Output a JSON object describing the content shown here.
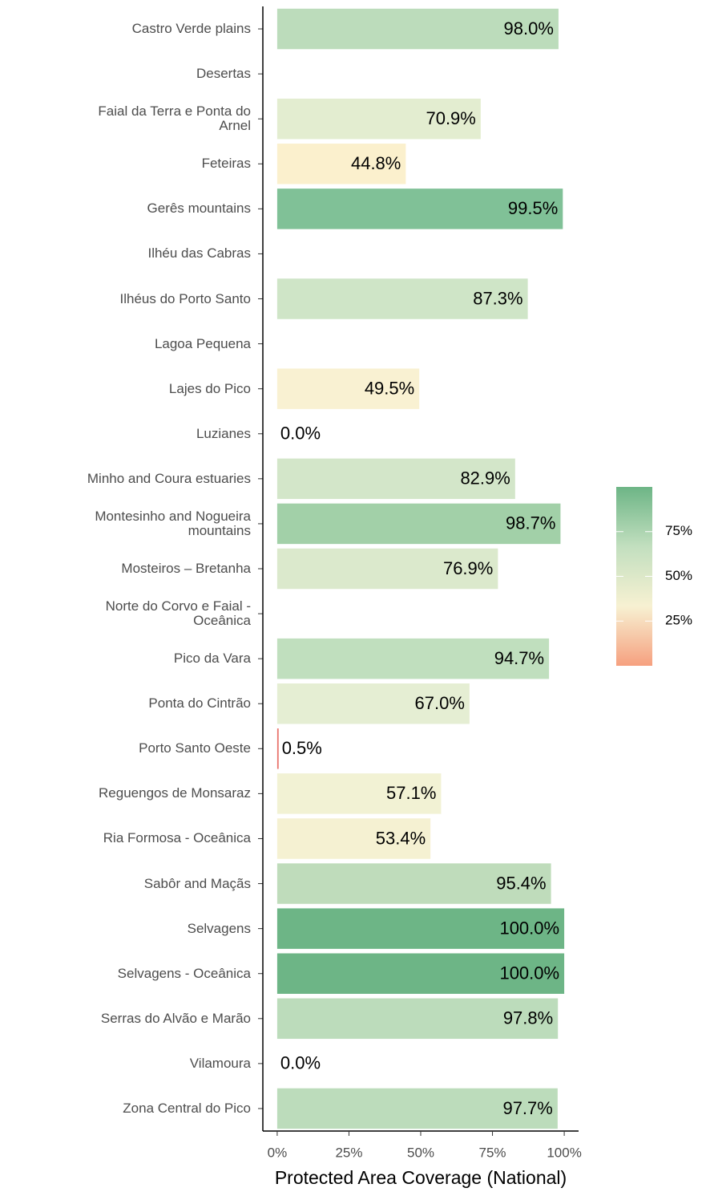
{
  "chart_data": {
    "type": "bar",
    "orientation": "horizontal",
    "xlabel": "Protected Area Coverage (National)",
    "categories": [
      "Castro Verde plains",
      "Desertas",
      "Faial da Terra e Ponta do\nArnel",
      "Feteiras",
      "Gerês mountains",
      "Ilhéu das Cabras",
      "Ilhéus do Porto Santo",
      "Lagoa Pequena",
      "Lajes do Pico",
      "Luzianes",
      "Minho and Coura estuaries",
      "Montesinho and Nogueira\nmountains",
      "Mosteiros – Bretanha",
      "Norte do Corvo e Faial -\nOceânica",
      "Pico da Vara",
      "Ponta do Cintrão",
      "Porto Santo Oeste",
      "Reguengos de Monsaraz",
      "Ria Formosa - Oceânica",
      "Sabôr and Maçãs",
      "Selvagens",
      "Selvagens - Oceânica",
      "Serras do Alvão e Marão",
      "Vilamoura",
      "Zona Central do Pico"
    ],
    "values": [
      98.0,
      null,
      70.9,
      44.8,
      99.5,
      null,
      87.3,
      null,
      49.5,
      0.0,
      82.9,
      98.7,
      76.9,
      null,
      94.7,
      67.0,
      0.5,
      57.1,
      53.4,
      95.4,
      100.0,
      100.0,
      97.8,
      0.0,
      97.7
    ],
    "value_labels": [
      "98.0%",
      null,
      "70.9%",
      "44.8%",
      "99.5%",
      null,
      "87.3%",
      null,
      "49.5%",
      "0.0%",
      "82.9%",
      "98.7%",
      "76.9%",
      null,
      "94.7%",
      "67.0%",
      "0.5%",
      "57.1%",
      "53.4%",
      "95.4%",
      "100.0%",
      "100.0%",
      "97.8%",
      "0.0%",
      "97.7%"
    ],
    "colors": [
      "#bcdcbb",
      null,
      "#e3edd0",
      "#fbf0cd",
      "#80c197",
      null,
      "#cfe5c7",
      null,
      "#f9f1d2",
      null,
      "#d3e6c9",
      "#a2d0a8",
      "#dbe9cc",
      null,
      "#c0dfbe",
      "#e5eed3",
      "#e8736b",
      "#f2f2d4",
      "#f5f1d2",
      "#bfdcbb",
      "#6db586",
      "#6db586",
      "#bcdcbb",
      null,
      "#bcdcbb"
    ],
    "xlim": [
      -5,
      105
    ],
    "xticks": [
      {
        "value": 0,
        "label": "0%"
      },
      {
        "value": 25,
        "label": "25%"
      },
      {
        "value": 50,
        "label": "50%"
      },
      {
        "value": 75,
        "label": "75%"
      },
      {
        "value": 100,
        "label": "100%"
      }
    ],
    "legend": {
      "colors": [
        "#6db586",
        "#c2dfbf",
        "#f7f1d2",
        "#f6a07f"
      ],
      "lim": [
        0,
        100
      ],
      "ticks": [
        {
          "value": 25,
          "label": "25%"
        },
        {
          "value": 50,
          "label": "50%"
        },
        {
          "value": 75,
          "label": "75%"
        }
      ]
    }
  }
}
